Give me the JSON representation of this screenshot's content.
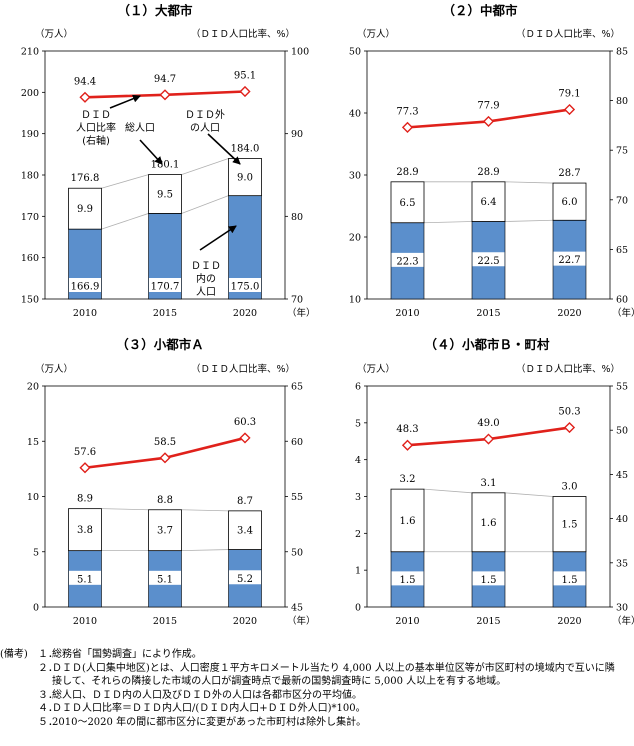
{
  "chart_data": [
    {
      "type": "bar",
      "title": "（１）大都市",
      "left_unit": "（万人）",
      "right_unit": "（ＤＩＤ人口比率、%）",
      "x_unit": "（年）",
      "categories": [
        "2010",
        "2015",
        "2020"
      ],
      "ylim": [
        150,
        210
      ],
      "yticks": [
        "150",
        "160",
        "170",
        "180",
        "190",
        "200",
        "210"
      ],
      "y2lim": [
        70,
        100
      ],
      "y2ticks": [
        "70",
        "80",
        "90",
        "100"
      ],
      "series": [
        {
          "name": "ＤＩＤ内の人口",
          "values": [
            166.9,
            170.7,
            175.0
          ],
          "labels": [
            "166.9",
            "170.7",
            "175.0"
          ]
        },
        {
          "name": "ＤＩＤ外の人口",
          "values": [
            9.9,
            9.5,
            9.0
          ],
          "labels": [
            "9.9",
            "9.5",
            "9.0"
          ]
        },
        {
          "name": "総人口",
          "values": [
            176.8,
            180.1,
            184.0
          ],
          "labels": [
            "176.8",
            "180.1",
            "184.0"
          ]
        },
        {
          "name": "ＤＩＤ人口比率（右軸）",
          "values": [
            94.4,
            94.7,
            95.1
          ],
          "labels": [
            "94.4",
            "94.7",
            "95.1"
          ]
        }
      ],
      "annotations": [
        {
          "lines": [
            "ＤＩＤ",
            "人口比率",
            "(右軸)"
          ]
        },
        {
          "lines": [
            "総人口"
          ]
        },
        {
          "lines": [
            "ＤＩＤ外",
            "の人口"
          ]
        },
        {
          "lines": [
            "ＤＩＤ",
            "内の",
            "人口"
          ]
        }
      ]
    },
    {
      "type": "bar",
      "title": "（２）中都市",
      "left_unit": "（万人）",
      "right_unit": "（ＤＩＤ人口比率、%）",
      "x_unit": "（年）",
      "categories": [
        "2010",
        "2015",
        "2020"
      ],
      "ylim": [
        10,
        50
      ],
      "yticks": [
        "10",
        "20",
        "30",
        "40",
        "50"
      ],
      "y2lim": [
        60,
        85
      ],
      "y2ticks": [
        "60",
        "65",
        "70",
        "75",
        "80",
        "85"
      ],
      "series": [
        {
          "name": "ＤＩＤ内の人口",
          "values": [
            22.3,
            22.5,
            22.7
          ],
          "labels": [
            "22.3",
            "22.5",
            "22.7"
          ]
        },
        {
          "name": "ＤＩＤ外の人口",
          "values": [
            6.5,
            6.4,
            6.0
          ],
          "labels": [
            "6.5",
            "6.4",
            "6.0"
          ]
        },
        {
          "name": "総人口",
          "values": [
            28.9,
            28.9,
            28.7
          ],
          "labels": [
            "28.9",
            "28.9",
            "28.7"
          ]
        },
        {
          "name": "ＤＩＤ人口比率（右軸）",
          "values": [
            77.3,
            77.9,
            79.1
          ],
          "labels": [
            "77.3",
            "77.9",
            "79.1"
          ]
        }
      ]
    },
    {
      "type": "bar",
      "title": "（３）小都市Ａ",
      "left_unit": "（万人）",
      "right_unit": "（ＤＩＤ人口比率、%）",
      "x_unit": "（年）",
      "categories": [
        "2010",
        "2015",
        "2020"
      ],
      "ylim": [
        0,
        20
      ],
      "yticks": [
        "0",
        "5",
        "10",
        "15",
        "20"
      ],
      "y2lim": [
        45,
        65
      ],
      "y2ticks": [
        "45",
        "50",
        "55",
        "60",
        "65"
      ],
      "series": [
        {
          "name": "ＤＩＤ内の人口",
          "values": [
            5.1,
            5.1,
            5.2
          ],
          "labels": [
            "5.1",
            "5.1",
            "5.2"
          ]
        },
        {
          "name": "ＤＩＤ外の人口",
          "values": [
            3.8,
            3.7,
            3.4
          ],
          "labels": [
            "3.8",
            "3.7",
            "3.4"
          ]
        },
        {
          "name": "総人口",
          "values": [
            8.9,
            8.8,
            8.7
          ],
          "labels": [
            "8.9",
            "8.8",
            "8.7"
          ]
        },
        {
          "name": "ＤＩＤ人口比率（右軸）",
          "values": [
            57.6,
            58.5,
            60.3
          ],
          "labels": [
            "57.6",
            "58.5",
            "60.3"
          ]
        }
      ]
    },
    {
      "type": "bar",
      "title": "（４）小都市Ｂ・町村",
      "left_unit": "（万人）",
      "right_unit": "（ＤＩＤ人口比率、%）",
      "x_unit": "（年）",
      "categories": [
        "2010",
        "2015",
        "2020"
      ],
      "ylim": [
        0,
        6
      ],
      "yticks": [
        "0",
        "1",
        "2",
        "3",
        "4",
        "5",
        "6"
      ],
      "y2lim": [
        30,
        55
      ],
      "y2ticks": [
        "30",
        "35",
        "40",
        "45",
        "50",
        "55"
      ],
      "series": [
        {
          "name": "ＤＩＤ内の人口",
          "values": [
            1.5,
            1.5,
            1.5
          ],
          "labels": [
            "1.5",
            "1.5",
            "1.5"
          ]
        },
        {
          "name": "ＤＩＤ外の人口",
          "values": [
            1.6,
            1.6,
            1.5
          ],
          "labels": [
            "1.6",
            "1.6",
            "1.5"
          ]
        },
        {
          "name": "総人口",
          "values": [
            3.2,
            3.1,
            3.0
          ],
          "labels": [
            "3.2",
            "3.1",
            "3.0"
          ]
        },
        {
          "name": "ＤＩＤ人口比率（右軸）",
          "values": [
            48.3,
            49.0,
            50.3
          ],
          "labels": [
            "48.3",
            "49.0",
            "50.3"
          ]
        }
      ]
    }
  ],
  "colors": {
    "did_inside": "#5b8fcc",
    "did_outside": "#ffffff",
    "bar_border": "#000000",
    "ratio_line": "#e0211b",
    "ratio_marker_fill": "#ffffff",
    "connector": "#b0b0b0"
  },
  "notes": {
    "heading": "(備考)",
    "items": [
      {
        "num": "１．",
        "text": "総務省「国勢調査」により作成。"
      },
      {
        "num": "２．",
        "text": "ＤＩＤ(人口集中地区)とは、人口密度１平方キロメートル当たり 4,000 人以上の基本単位区等が市区町村の境域内で互いに隣接して、それらの隣接した市域の人口が調査時点で最新の国勢調査時に 5,000 人以上を有する地域。"
      },
      {
        "num": "３．",
        "text": "総人口、ＤＩＤ内の人口及びＤＩＤ外の人口は各都市区分の平均値。"
      },
      {
        "num": "４．",
        "text": "ＤＩＤ人口比率＝ＤＩＤ内人口/(ＤＩＤ内人口+ＤＩＤ外人口)*100。"
      },
      {
        "num": "５．",
        "text": "2010～2020 年の間に都市区分に変更があった市町村は除外し集計。"
      }
    ]
  }
}
